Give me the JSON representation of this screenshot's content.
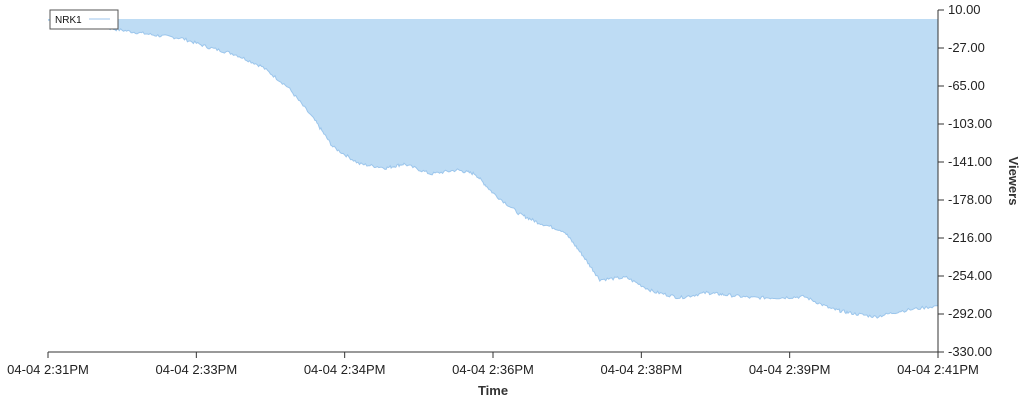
{
  "chart_data": {
    "type": "area",
    "xlabel": "Time",
    "ylabel": "Viewers",
    "ylim": [
      -330,
      10
    ],
    "y_axis_position": "right",
    "grid": false,
    "legend_placement": "top-left",
    "fill_color": "#bedcf4",
    "line_color": "#9cc6ec",
    "x_ticks": [
      "04-04 2:31PM",
      "04-04 2:33PM",
      "04-04 2:34PM",
      "04-04 2:36PM",
      "04-04 2:38PM",
      "04-04 2:39PM",
      "04-04 2:41PM"
    ],
    "y_ticks": [
      "10.00",
      "-27.00",
      "-65.00",
      "-103.00",
      "-141.00",
      "-178.00",
      "-216.00",
      "-254.00",
      "-292.00",
      "-330.00"
    ],
    "series": [
      {
        "name": "NRK1",
        "x_minutes": [
          0,
          0.3,
          0.6,
          0.9,
          1.2,
          1.5,
          1.8,
          2.1,
          2.4,
          2.7,
          3.0,
          3.2,
          3.5,
          3.8,
          4.0,
          4.3,
          4.6,
          4.8,
          5.0,
          5.3,
          5.5,
          5.8,
          6.0,
          6.2,
          6.5,
          6.8,
          7.1,
          7.4,
          7.6,
          7.9,
          8.2,
          8.5,
          8.8,
          9.0,
          9.3,
          9.6,
          10.0
        ],
        "values": [
          0,
          -1,
          -7,
          -11,
          -15,
          -18,
          -27,
          -34,
          -46,
          -67,
          -100,
          -126,
          -143,
          -147,
          -143,
          -153,
          -149,
          -153,
          -172,
          -193,
          -201,
          -210,
          -233,
          -258,
          -256,
          -270,
          -276,
          -271,
          -273,
          -276,
          -276,
          -275,
          -287,
          -291,
          -295,
          -289,
          -284
        ]
      }
    ]
  }
}
